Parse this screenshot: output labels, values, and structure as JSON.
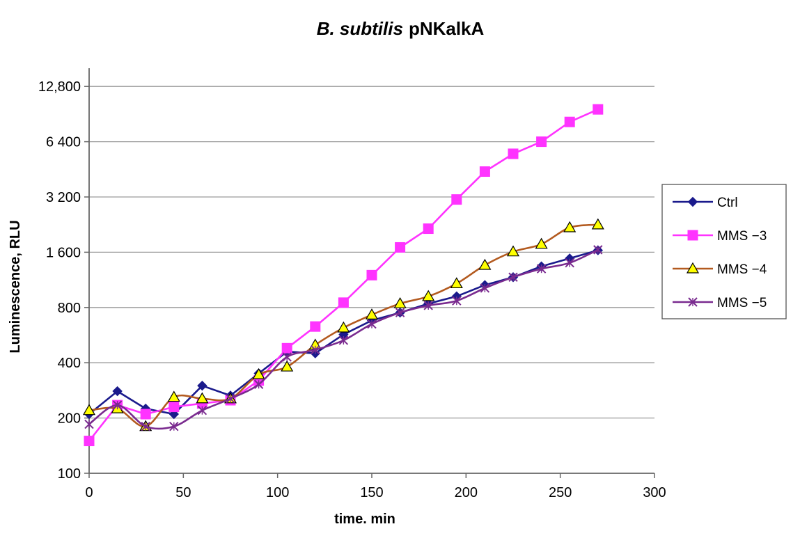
{
  "chart_data": {
    "type": "line",
    "title_italic": "B. subtilis",
    "title_rest": "pNKalkA",
    "xlabel": "time. min",
    "ylabel": "Luminescence, RLU",
    "xlim": [
      0,
      300
    ],
    "ylim": [
      100,
      19000
    ],
    "yscale": "log2",
    "grid": "horizontal",
    "legend_position": "right",
    "x_ticks": [
      0,
      50,
      100,
      150,
      200,
      250,
      300
    ],
    "x_tick_labels": [
      "0",
      "50",
      "100",
      "150",
      "200",
      "250",
      "300"
    ],
    "y_ticks": [
      100,
      200,
      400,
      800,
      1600,
      3200,
      6400,
      12800
    ],
    "y_tick_labels": [
      "100",
      "200",
      "400",
      "800",
      "1 600",
      "3 200",
      "6 400",
      "12,800"
    ],
    "x": [
      0,
      15,
      30,
      45,
      60,
      75,
      90,
      105,
      120,
      135,
      150,
      165,
      180,
      195,
      210,
      225,
      240,
      255,
      270
    ],
    "series": [
      {
        "name": "Ctrl",
        "color": "#1a1a8c",
        "marker": "diamond",
        "values": [
          210,
          280,
          225,
          210,
          300,
          265,
          350,
          460,
          450,
          570,
          680,
          750,
          840,
          920,
          1060,
          1170,
          1340,
          1480,
          1640
        ]
      },
      {
        "name": "MMS −3",
        "color": "#ff33ff",
        "marker": "square",
        "values": [
          150,
          235,
          210,
          230,
          240,
          250,
          320,
          480,
          630,
          850,
          1200,
          1700,
          2150,
          3100,
          4400,
          5500,
          6400,
          8200,
          9600
        ]
      },
      {
        "name": "MMS −4",
        "color": "#b35a1f",
        "marker": "triangle",
        "values": [
          220,
          225,
          180,
          260,
          255,
          255,
          345,
          380,
          500,
          620,
          730,
          840,
          920,
          1080,
          1360,
          1610,
          1770,
          2180,
          2260
        ]
      },
      {
        "name": "MMS −5",
        "color": "#7a2b8f",
        "marker": "x",
        "values": [
          185,
          235,
          180,
          180,
          220,
          255,
          305,
          430,
          470,
          530,
          650,
          750,
          820,
          870,
          1020,
          1170,
          1300,
          1400,
          1650
        ]
      }
    ]
  }
}
